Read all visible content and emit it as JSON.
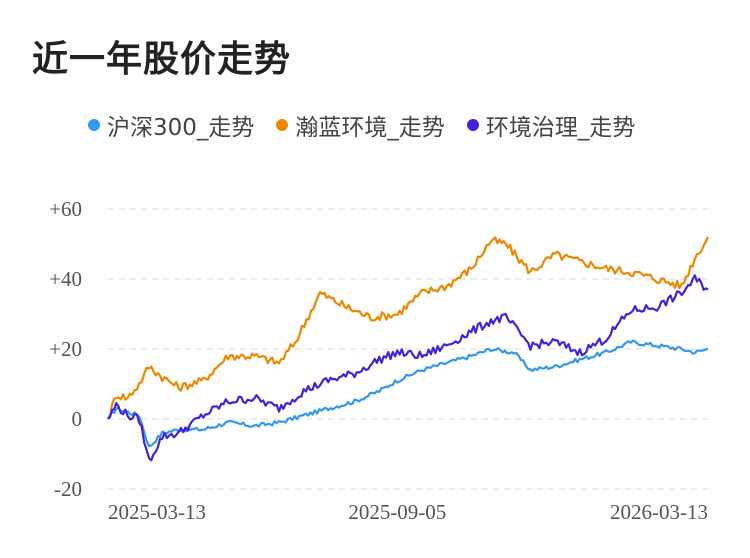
{
  "page_title": "近一年股价走势",
  "chart_data": {
    "type": "line",
    "title": "近一年股价走势",
    "xlabel": "",
    "ylabel": "",
    "x_range": [
      "2025-03-13",
      "2026-03-13"
    ],
    "ylim": [
      -20,
      60
    ],
    "y_ticks": [
      "-20",
      "0",
      "+20",
      "+40",
      "+60"
    ],
    "x_ticks": [
      "2025-03-13",
      "2025-09-05",
      "2026-03-13"
    ],
    "grid": true,
    "legend": "top",
    "series": [
      {
        "name": "沪深300_走势",
        "color": "#3399ee",
        "points": [
          [
            "2025-03-13",
            0
          ],
          [
            "2025-03-18",
            3
          ],
          [
            "2025-03-25",
            2
          ],
          [
            "2025-04-01",
            1
          ],
          [
            "2025-04-07",
            -8
          ],
          [
            "2025-04-15",
            -4
          ],
          [
            "2025-04-25",
            -3
          ],
          [
            "2025-05-10",
            -3
          ],
          [
            "2025-05-25",
            -1
          ],
          [
            "2025-06-10",
            -2
          ],
          [
            "2025-06-25",
            -1
          ],
          [
            "2025-07-10",
            1
          ],
          [
            "2025-07-25",
            3
          ],
          [
            "2025-08-10",
            5
          ],
          [
            "2025-08-25",
            8
          ],
          [
            "2025-09-05",
            11
          ],
          [
            "2025-09-20",
            14
          ],
          [
            "2025-10-05",
            16
          ],
          [
            "2025-10-20",
            18
          ],
          [
            "2025-11-01",
            20
          ],
          [
            "2025-11-15",
            19
          ],
          [
            "2025-11-25",
            14
          ],
          [
            "2025-12-10",
            15
          ],
          [
            "2025-12-25",
            17
          ],
          [
            "2026-01-10",
            19
          ],
          [
            "2026-01-25",
            22
          ],
          [
            "2026-02-10",
            21
          ],
          [
            "2026-02-25",
            20
          ],
          [
            "2026-03-05",
            19
          ],
          [
            "2026-03-13",
            20
          ]
        ]
      },
      {
        "name": "瀚蓝环境_走势",
        "color": "#ee8800",
        "points": [
          [
            "2025-03-13",
            0
          ],
          [
            "2025-03-18",
            7
          ],
          [
            "2025-03-25",
            6
          ],
          [
            "2025-04-01",
            10
          ],
          [
            "2025-04-07",
            15
          ],
          [
            "2025-04-15",
            12
          ],
          [
            "2025-04-25",
            9
          ],
          [
            "2025-05-10",
            11
          ],
          [
            "2025-05-25",
            18
          ],
          [
            "2025-06-10",
            18
          ],
          [
            "2025-06-25",
            16
          ],
          [
            "2025-07-05",
            22
          ],
          [
            "2025-07-20",
            36
          ],
          [
            "2025-08-05",
            32
          ],
          [
            "2025-08-20",
            29
          ],
          [
            "2025-09-05",
            30
          ],
          [
            "2025-09-20",
            36
          ],
          [
            "2025-10-05",
            38
          ],
          [
            "2025-10-20",
            43
          ],
          [
            "2025-11-01",
            51
          ],
          [
            "2025-11-10",
            50
          ],
          [
            "2025-11-25",
            42
          ],
          [
            "2025-12-10",
            47
          ],
          [
            "2025-12-25",
            45
          ],
          [
            "2026-01-10",
            43
          ],
          [
            "2026-01-25",
            42
          ],
          [
            "2026-02-10",
            40
          ],
          [
            "2026-02-25",
            38
          ],
          [
            "2026-03-05",
            46
          ],
          [
            "2026-03-13",
            52
          ]
        ]
      },
      {
        "name": "环境治理_走势",
        "color": "#4422dd",
        "points": [
          [
            "2025-03-13",
            0
          ],
          [
            "2025-03-18",
            4
          ],
          [
            "2025-03-25",
            1
          ],
          [
            "2025-04-01",
            0
          ],
          [
            "2025-04-07",
            -12
          ],
          [
            "2025-04-15",
            -5
          ],
          [
            "2025-04-25",
            -4
          ],
          [
            "2025-05-10",
            1
          ],
          [
            "2025-05-25",
            5
          ],
          [
            "2025-06-10",
            6
          ],
          [
            "2025-06-25",
            3
          ],
          [
            "2025-07-10",
            8
          ],
          [
            "2025-07-25",
            11
          ],
          [
            "2025-08-10",
            13
          ],
          [
            "2025-08-25",
            17
          ],
          [
            "2025-09-05",
            19
          ],
          [
            "2025-09-20",
            18
          ],
          [
            "2025-10-05",
            21
          ],
          [
            "2025-10-20",
            25
          ],
          [
            "2025-11-01",
            28
          ],
          [
            "2025-11-10",
            29
          ],
          [
            "2025-11-25",
            21
          ],
          [
            "2025-12-10",
            22
          ],
          [
            "2025-12-25",
            19
          ],
          [
            "2026-01-10",
            23
          ],
          [
            "2026-01-25",
            31
          ],
          [
            "2026-02-10",
            32
          ],
          [
            "2026-02-25",
            36
          ],
          [
            "2026-03-05",
            40
          ],
          [
            "2026-03-13",
            37
          ]
        ]
      }
    ]
  }
}
